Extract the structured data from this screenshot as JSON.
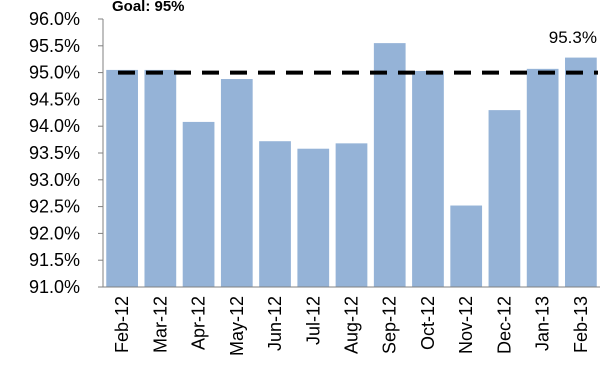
{
  "chart_data": {
    "type": "bar",
    "title": "",
    "xlabel": "",
    "ylabel": "",
    "categories": [
      "Feb-12",
      "Mar-12",
      "Apr-12",
      "May-12",
      "Jun-12",
      "Jul-12",
      "Aug-12",
      "Sep-12",
      "Oct-12",
      "Nov-12",
      "Dec-12",
      "Jan-13",
      "Feb-13"
    ],
    "series": [
      {
        "values": [
          95.05,
          95.05,
          94.08,
          94.88,
          93.72,
          93.58,
          93.68,
          95.55,
          95.03,
          92.52,
          94.3,
          95.07,
          95.28
        ],
        "color": "#95b3d7"
      }
    ],
    "ylim": [
      91.0,
      96.0
    ],
    "yticks": [
      91.0,
      91.5,
      92.0,
      92.5,
      93.0,
      93.5,
      94.0,
      94.5,
      95.0,
      95.5,
      96.0
    ],
    "ytick_labels": [
      "91.0%",
      "91.5%",
      "92.0%",
      "92.5%",
      "93.0%",
      "93.5%",
      "94.0%",
      "94.5%",
      "95.0%",
      "95.5%",
      "96.0%"
    ],
    "grid": false,
    "goal": {
      "label": "Goal: 95%",
      "value": 95.0,
      "style": "dashed",
      "color": "#000000"
    },
    "data_labels": [
      {
        "index": 12,
        "text": "95.3%"
      }
    ]
  }
}
